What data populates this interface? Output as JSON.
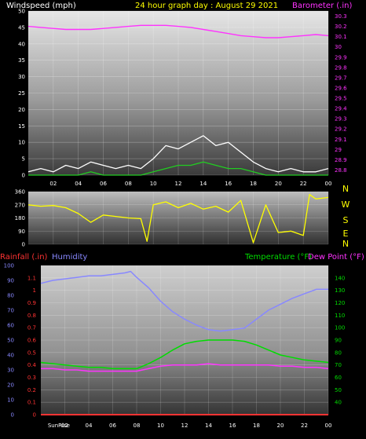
{
  "colors": {
    "background": "#000000",
    "windspeed_label": "#ffffff",
    "title": "#ffff00",
    "barometer": "#ff33ff",
    "wind_gust": "#ffffff",
    "wind_avg": "#22cc22",
    "wind_dir_trace": "#ffff00",
    "rainfall": "#ff3333",
    "humidity": "#8888ff",
    "temperature": "#00dd00",
    "dewpoint": "#ff33ff",
    "tick_text": "#ffffff"
  },
  "chart_data": [
    {
      "type": "line",
      "title": "24 hour graph day : August 29 2021",
      "left_axis_label": "Windspeed (mph)",
      "right_axis_label": "Barometer (.in)",
      "x_tick_labels": [
        "02",
        "04",
        "06",
        "08",
        "10",
        "12",
        "14",
        "16",
        "18",
        "20",
        "22",
        "00"
      ],
      "x_hours": [
        0,
        24
      ],
      "left_ticks": [
        0,
        5,
        10,
        15,
        20,
        25,
        30,
        35,
        40,
        45,
        50
      ],
      "left_ylim": [
        0,
        50
      ],
      "right_ticks": [
        "28.8",
        "28.9",
        "29",
        "29.1",
        "29.2",
        "29.3",
        "29.4",
        "29.5",
        "29.6",
        "29.7",
        "29.8",
        "29.9",
        "30",
        "30.1",
        "30.2",
        "30.3"
      ],
      "right_ylim": [
        28.75,
        30.35
      ],
      "series": [
        {
          "axis": "right",
          "x": [
            0,
            1,
            2,
            3,
            4,
            5,
            6,
            7,
            8,
            9,
            10,
            11,
            12,
            13,
            14,
            15,
            16,
            17,
            18,
            19,
            20,
            21,
            22,
            23,
            24
          ],
          "values": [
            30.2,
            30.19,
            30.18,
            30.17,
            30.17,
            30.17,
            30.18,
            30.19,
            30.2,
            30.21,
            30.21,
            30.21,
            30.2,
            30.19,
            30.17,
            30.15,
            30.13,
            30.11,
            30.1,
            30.09,
            30.09,
            30.1,
            30.11,
            30.12,
            30.11
          ]
        },
        {
          "axis": "left",
          "x": [
            0,
            1,
            2,
            3,
            4,
            5,
            6,
            7,
            8,
            9,
            10,
            11,
            12,
            13,
            14,
            15,
            16,
            17,
            18,
            19,
            20,
            21,
            22,
            23,
            24
          ],
          "values": [
            1,
            2,
            1,
            3,
            2,
            4,
            3,
            2,
            3,
            2,
            5,
            9,
            8,
            10,
            12,
            9,
            10,
            7,
            4,
            2,
            1,
            2,
            1,
            1,
            2
          ]
        },
        {
          "axis": "left",
          "x": [
            0,
            1,
            2,
            3,
            4,
            5,
            6,
            7,
            8,
            9,
            10,
            11,
            12,
            13,
            14,
            15,
            16,
            17,
            18,
            19,
            20,
            21,
            22,
            23,
            24
          ],
          "values": [
            0,
            0,
            0,
            0,
            0,
            1,
            0,
            0,
            0,
            0,
            1,
            2,
            3,
            3,
            4,
            3,
            2,
            2,
            1,
            0,
            0,
            0,
            0,
            0,
            0
          ]
        }
      ]
    },
    {
      "type": "line",
      "title": "",
      "left_ticks": [
        0,
        90,
        180,
        270,
        360
      ],
      "left_ylim": [
        0,
        360
      ],
      "right_tick_labels": [
        "N",
        "W",
        "S",
        "E",
        "N"
      ],
      "x_hours": [
        0,
        24
      ],
      "series": [
        {
          "x": [
            0,
            1,
            2,
            3,
            4,
            5,
            6,
            7,
            8,
            9,
            9.5,
            10,
            11,
            12,
            13,
            14,
            15,
            16,
            17,
            18,
            19,
            20,
            21,
            22,
            22.5,
            23,
            24
          ],
          "values": [
            270,
            260,
            265,
            250,
            210,
            150,
            200,
            190,
            180,
            175,
            20,
            270,
            290,
            250,
            280,
            240,
            260,
            220,
            300,
            10,
            270,
            80,
            90,
            60,
            340,
            310,
            320
          ]
        }
      ]
    },
    {
      "type": "line",
      "title": "",
      "rainfall_label": "Rainfall (.in)",
      "humidity_label": "Humidity",
      "temperature_label": "Temperature (°F)",
      "dewpoint_label": "Dew Point (°F)",
      "x_tick_labels": [
        "SunRise",
        "02",
        "04",
        "06",
        "08",
        "10",
        "12",
        "14",
        "16",
        "18",
        "20",
        "22",
        "00"
      ],
      "x_hours": [
        0,
        24
      ],
      "humidity_ticks": [
        0,
        10,
        20,
        30,
        40,
        50,
        60,
        70,
        80,
        90,
        100
      ],
      "humidity_ylim": [
        0,
        100
      ],
      "rainfall_ticks": [
        "0",
        "0.1",
        "0.2",
        "0.3",
        "0.4",
        "0.5",
        "0.6",
        "0.7",
        "0.8",
        "0.9",
        "1",
        "1.1"
      ],
      "rainfall_ylim": [
        0,
        1.2
      ],
      "temperature_ticks": [
        40,
        50,
        60,
        70,
        80,
        90,
        100,
        110,
        120,
        130,
        140
      ],
      "temperature_ylim": [
        30,
        150
      ],
      "series": [
        {
          "axis": "humidity",
          "x": [
            0,
            1,
            2,
            3,
            4,
            5,
            6,
            7,
            7.5,
            8,
            9,
            10,
            11,
            12,
            13,
            14,
            15,
            16,
            17,
            18,
            19,
            20,
            21,
            22,
            23,
            24
          ],
          "values": [
            88,
            90,
            91,
            92,
            93,
            93,
            94,
            95,
            96,
            92,
            85,
            76,
            69,
            64,
            60,
            57,
            56,
            57,
            58,
            64,
            70,
            74,
            78,
            81,
            84,
            84
          ]
        },
        {
          "axis": "temperature",
          "x": [
            0,
            1,
            2,
            3,
            4,
            5,
            6,
            7,
            8,
            9,
            10,
            11,
            12,
            13,
            14,
            15,
            16,
            17,
            18,
            19,
            20,
            21,
            22,
            23,
            24
          ],
          "values": [
            72,
            71,
            70,
            69,
            68,
            68,
            67,
            67,
            67,
            71,
            76,
            82,
            87,
            89,
            90,
            90,
            90,
            89,
            86,
            82,
            78,
            76,
            74,
            73,
            72
          ]
        },
        {
          "axis": "temperature",
          "x": [
            0,
            1,
            2,
            3,
            4,
            5,
            6,
            7,
            8,
            9,
            10,
            11,
            12,
            13,
            14,
            15,
            16,
            17,
            18,
            19,
            20,
            21,
            22,
            23,
            24
          ],
          "values": [
            67,
            67,
            66,
            66,
            65,
            65,
            65,
            65,
            65,
            67,
            69,
            70,
            70,
            70,
            71,
            70,
            70,
            70,
            70,
            70,
            69,
            69,
            68,
            68,
            67
          ]
        },
        {
          "axis": "rainfall",
          "x": [
            0,
            24
          ],
          "values": [
            0,
            0
          ]
        }
      ]
    }
  ]
}
